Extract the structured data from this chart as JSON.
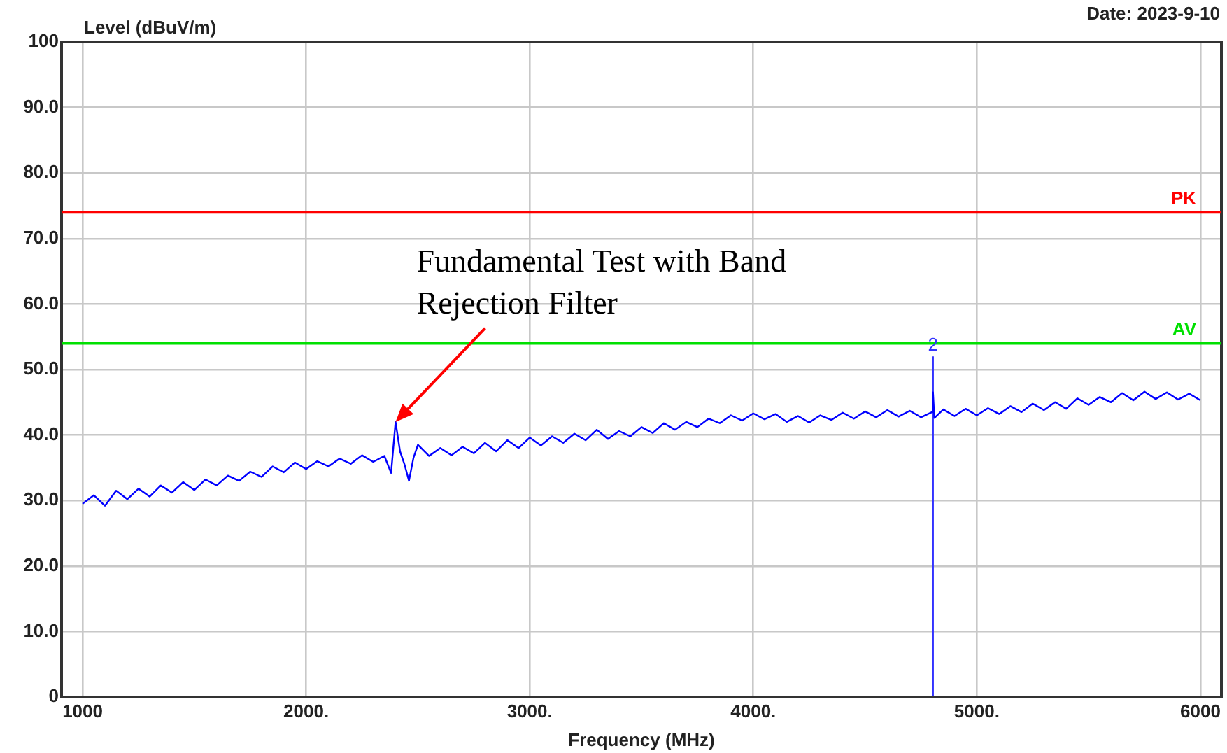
{
  "chart_data": {
    "type": "line",
    "xlabel": "Frequency (MHz)",
    "ylabel": "Level (dBuV/m)",
    "xlim": [
      906,
      6094
    ],
    "ylim": [
      0,
      100
    ],
    "xticks": [
      1000,
      {
        "value": 2000,
        "label": "2000."
      },
      {
        "value": 3000,
        "label": "3000."
      },
      {
        "value": 4000,
        "label": "4000."
      },
      {
        "value": 5000,
        "label": "5000."
      },
      6000
    ],
    "yticks": [
      0,
      {
        "value": 10,
        "label": "10.0"
      },
      {
        "value": 20,
        "label": "20.0"
      },
      {
        "value": 30,
        "label": "30.0"
      },
      {
        "value": 40,
        "label": "40.0"
      },
      {
        "value": 50,
        "label": "50.0"
      },
      {
        "value": 60,
        "label": "60.0"
      },
      {
        "value": 70,
        "label": "70.0"
      },
      {
        "value": 80,
        "label": "80.0"
      },
      {
        "value": 90,
        "label": "90.0"
      },
      100
    ],
    "grid": true,
    "legend": false,
    "marker": "none",
    "series": [
      {
        "color": "#0000ff",
        "x": [
          1000,
          1050,
          1100,
          1150,
          1200,
          1250,
          1300,
          1350,
          1400,
          1450,
          1500,
          1550,
          1600,
          1650,
          1700,
          1750,
          1800,
          1850,
          1900,
          1950,
          2000,
          2050,
          2100,
          2150,
          2200,
          2250,
          2300,
          2350,
          2380,
          2400,
          2420,
          2440,
          2460,
          2480,
          2500,
          2550,
          2600,
          2650,
          2700,
          2750,
          2800,
          2850,
          2900,
          2950,
          3000,
          3050,
          3100,
          3150,
          3200,
          3250,
          3300,
          3350,
          3400,
          3450,
          3500,
          3550,
          3600,
          3650,
          3700,
          3750,
          3800,
          3850,
          3900,
          3950,
          4000,
          4050,
          4100,
          4150,
          4200,
          4250,
          4300,
          4350,
          4400,
          4450,
          4500,
          4550,
          4600,
          4650,
          4700,
          4750,
          4800,
          4804,
          4810,
          4850,
          4900,
          4950,
          5000,
          5050,
          5100,
          5150,
          5200,
          5250,
          5300,
          5350,
          5400,
          5450,
          5500,
          5550,
          5600,
          5650,
          5700,
          5750,
          5800,
          5850,
          5900,
          5950,
          6000
        ],
        "values": [
          29.5,
          30.8,
          29.2,
          31.5,
          30.2,
          31.8,
          30.6,
          32.3,
          31.2,
          32.8,
          31.6,
          33.2,
          32.3,
          33.8,
          33.0,
          34.4,
          33.6,
          35.2,
          34.3,
          35.8,
          34.8,
          36.0,
          35.2,
          36.4,
          35.6,
          36.9,
          35.9,
          36.8,
          34.2,
          42.0,
          37.5,
          35.5,
          33.0,
          36.5,
          38.5,
          36.8,
          38.0,
          36.9,
          38.2,
          37.2,
          38.8,
          37.5,
          39.2,
          38.0,
          39.6,
          38.4,
          39.8,
          38.8,
          40.2,
          39.2,
          40.8,
          39.4,
          40.6,
          39.8,
          41.2,
          40.3,
          41.8,
          40.8,
          42.0,
          41.2,
          42.5,
          41.8,
          43.0,
          42.2,
          43.3,
          42.4,
          43.2,
          42.0,
          42.9,
          41.9,
          43.0,
          42.3,
          43.4,
          42.5,
          43.6,
          42.7,
          43.8,
          42.8,
          43.7,
          42.7,
          43.5,
          46.5,
          42.6,
          43.9,
          42.9,
          44.0,
          43.0,
          44.1,
          43.2,
          44.4,
          43.5,
          44.8,
          43.8,
          45.0,
          44.0,
          45.6,
          44.6,
          45.8,
          45.0,
          46.4,
          45.3,
          46.6,
          45.5,
          46.5,
          45.4,
          46.3,
          45.3
        ]
      },
      {
        "name": "2",
        "color": "#3333ff",
        "x": [
          4804,
          4804
        ],
        "values": [
          0,
          52
        ]
      }
    ],
    "ref_lines": [
      {
        "axis": "y",
        "value": 74,
        "label": "PK",
        "color": "#ff0000"
      },
      {
        "axis": "y",
        "value": 54,
        "label": "AV",
        "color": "#00e000"
      }
    ],
    "annotations": [
      "Date: 2023-9-10",
      {
        "text": "Fundamental Test with Band Rejection Filter",
        "x": 2400,
        "y": 42
      }
    ]
  }
}
